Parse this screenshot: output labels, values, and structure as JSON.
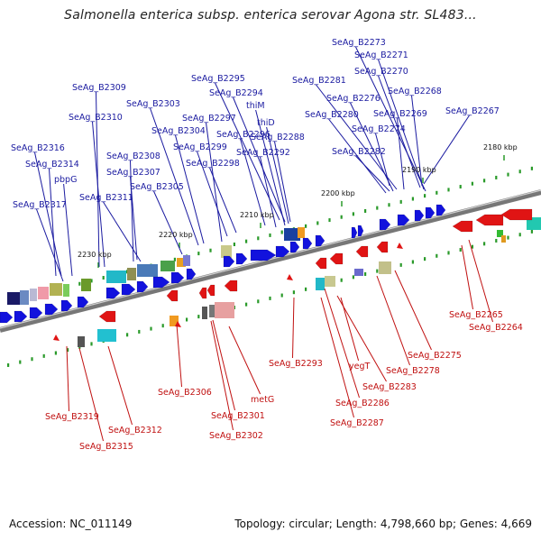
{
  "title": "Salmonella enterica subsp. enterica serovar Agona str. SL483...",
  "footer": {
    "accession": "Accession: NC_011149",
    "topology": "Topology: circular; Length: 4,798,660 bp; Genes: 4,669"
  },
  "colors": {
    "forward_gene": "#1111cc",
    "reverse_gene": "#dd1111",
    "backbone": "#888888",
    "tick": "#2a9a2a"
  },
  "ruler_labels": [
    "2180 kbp",
    "2190 kbp",
    "2200 kbp",
    "2210 kbp",
    "2220 kbp",
    "2230 kbp"
  ],
  "forward_labels": [
    "SeAg_B2273",
    "SeAg_B2271",
    "SeAg_B2270",
    "SeAg_B2281",
    "SeAg_B2268",
    "SeAg_B2276",
    "SeAg_B2309",
    "SeAg_B2295",
    "SeAg_B2294",
    "SeAg_B2303",
    "SeAg_B2280",
    "SeAg_B2269",
    "SeAg_B2267",
    "SeAg_B2310",
    "thiM",
    "SeAg_B2297",
    "thiD",
    "SeAg_B2274",
    "SeAg_B2304",
    "SeAg_B2296",
    "SeAg_B2288",
    "SeAg_B2299",
    "SeAg_B2316",
    "SeAg_B2308",
    "SeAg_B2292",
    "SeAg_B2282",
    "SeAg_B2314",
    "SeAg_B2298",
    "SeAg_B2307",
    "pbpG",
    "SeAg_B2305",
    "SeAg_B2311",
    "SeAg_B2317"
  ],
  "reverse_labels": [
    "SeAg_B2265",
    "SeAg_B2264",
    "SeAg_B2275",
    "SeAg_B2293",
    "yegT",
    "SeAg_B2278",
    "SeAg_B2283",
    "SeAg_B2306",
    "metG",
    "SeAg_B2286",
    "SeAg_B2287",
    "SeAg_B2319",
    "SeAg_B2301",
    "SeAg_B2312",
    "SeAg_B2302",
    "SeAg_B2315"
  ]
}
